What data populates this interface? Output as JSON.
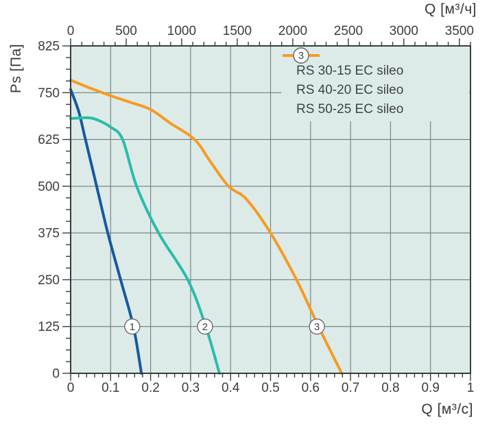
{
  "page": {
    "background": "#ffffff"
  },
  "chart_data": {
    "type": "line",
    "title": "",
    "legend_position": "top-right-inside",
    "plot_bg": "#dcebe8",
    "grid_color": "#6e7d7d",
    "axis_color": "#363d3d",
    "text_color": "#3c3c3b",
    "marker_circle_fill": "#ffffff",
    "marker_circle_stroke": "#6b6b6b",
    "marker_number_color": "#3d4254",
    "axes": {
      "top": {
        "label": "Q [м³/ч]",
        "tick_labels": [
          "0",
          "500",
          "1000",
          "1500",
          "2000",
          "2500",
          "3000",
          "3500"
        ],
        "tick_values": [
          0,
          500,
          1000,
          1500,
          2000,
          2500,
          3000,
          3500
        ],
        "minor_step": 100,
        "max": 3600,
        "units_per_bottom_unit": 3600
      },
      "bottom": {
        "label": "Q [м³/с]",
        "tick_labels": [
          "0",
          "0.1",
          "0.2",
          "0.3",
          "0.4",
          "0.5",
          "0.6",
          "0.7",
          "0.8",
          "0.9",
          "1"
        ],
        "tick_values": [
          0,
          0.1,
          0.2,
          0.3,
          0.4,
          0.5,
          0.6,
          0.7,
          0.8,
          0.9,
          1
        ],
        "minor_step": 0.02,
        "min": 0,
        "max": 1
      },
      "left": {
        "label": "Ps [Па]",
        "tick_labels": [
          "825",
          "750",
          "625",
          "500",
          "375",
          "250",
          "125",
          "0"
        ],
        "tick_values": [
          825,
          750,
          625,
          500,
          375,
          250,
          125,
          0
        ],
        "minors_per_gap": 3
      }
    },
    "series": [
      {
        "marker": "1",
        "name": "RS 30-15 EC sileo",
        "color": "#17599f",
        "points": [
          [
            0,
            755
          ],
          [
            0.02,
            700
          ],
          [
            0.037,
            625
          ],
          [
            0.065,
            500
          ],
          [
            0.093,
            375
          ],
          [
            0.125,
            250
          ],
          [
            0.157,
            125
          ],
          [
            0.177,
            0
          ]
        ]
      },
      {
        "marker": "2",
        "name": "RS 40-20 EC sileo",
        "color": "#2abcab",
        "points": [
          [
            0,
            681
          ],
          [
            0.04,
            683
          ],
          [
            0.065,
            678
          ],
          [
            0.1,
            658
          ],
          [
            0.13,
            625
          ],
          [
            0.165,
            500
          ],
          [
            0.22,
            375
          ],
          [
            0.293,
            250
          ],
          [
            0.338,
            125
          ],
          [
            0.372,
            0
          ]
        ]
      },
      {
        "marker": "3",
        "name": "RS 50-25 EC sileo",
        "color": "#f69b22",
        "points": [
          [
            0,
            770
          ],
          [
            0.05,
            757
          ],
          [
            0.1,
            742
          ],
          [
            0.15,
            724
          ],
          [
            0.2,
            705
          ],
          [
            0.25,
            668
          ],
          [
            0.31,
            625
          ],
          [
            0.35,
            565
          ],
          [
            0.395,
            500
          ],
          [
            0.44,
            465
          ],
          [
            0.5,
            375
          ],
          [
            0.565,
            250
          ],
          [
            0.62,
            125
          ],
          [
            0.678,
            0
          ]
        ]
      }
    ],
    "series_markers": [
      {
        "q": 0.154,
        "ps": 125
      },
      {
        "q": 0.336,
        "ps": 125
      },
      {
        "q": 0.616,
        "ps": 125
      }
    ]
  }
}
